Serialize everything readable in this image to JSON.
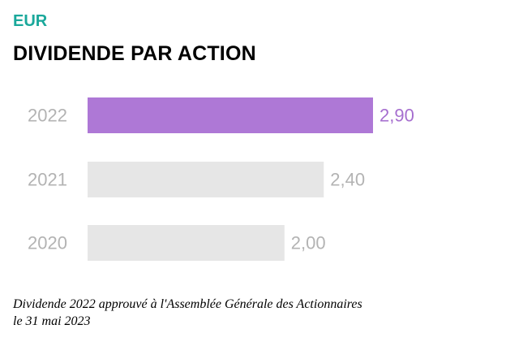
{
  "header": {
    "unit": "EUR",
    "title": "DIVIDENDE PAR ACTION"
  },
  "colors": {
    "unit": "#1aa89b",
    "highlight_bar": "#ae78d6",
    "highlight_label": "#a66fcf",
    "muted_bar": "#e6e6e6",
    "muted_label": "#b3b3b3"
  },
  "chart_data": {
    "type": "bar",
    "orientation": "horizontal",
    "categories": [
      "2022",
      "2021",
      "2020"
    ],
    "values": [
      2.9,
      2.4,
      2.0
    ],
    "value_labels": [
      "2,90",
      "2,40",
      "2,00"
    ],
    "highlight_index": 0,
    "title": "DIVIDENDE PAR ACTION",
    "unit": "EUR",
    "xlim": [
      0,
      2.9
    ],
    "grid": false,
    "legend": "none"
  },
  "footnote": {
    "line1": "Dividende 2022 approuvé à l'Assemblée Générale des Actionnaires",
    "line2": "le 31 mai 2023"
  }
}
